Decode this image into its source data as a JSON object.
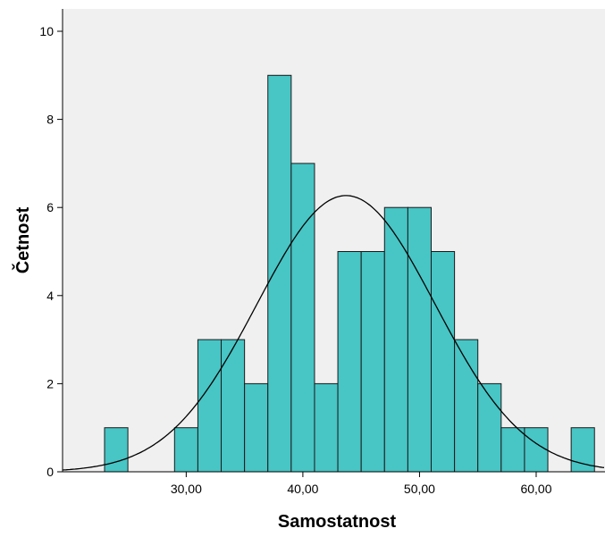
{
  "chart_data": {
    "type": "bar",
    "subtype": "histogram",
    "xlabel": "Samostatnost",
    "ylabel": "Četnost",
    "xlim": [
      20.0,
      66.0
    ],
    "ylim": [
      0,
      10.4
    ],
    "bin_width": 2,
    "x_ticks": [
      30,
      40,
      50,
      60
    ],
    "x_tick_labels": [
      "30,00",
      "40,00",
      "50,00",
      "60,00"
    ],
    "y_ticks": [
      0,
      2,
      4,
      6,
      8,
      10
    ],
    "y_tick_labels": [
      "0",
      "2",
      "4",
      "6",
      "8",
      "10"
    ],
    "bins": [
      {
        "start": 23,
        "end": 25,
        "count": 1
      },
      {
        "start": 25,
        "end": 27,
        "count": 0
      },
      {
        "start": 27,
        "end": 29,
        "count": 0
      },
      {
        "start": 29,
        "end": 31,
        "count": 1
      },
      {
        "start": 31,
        "end": 33,
        "count": 3
      },
      {
        "start": 33,
        "end": 35,
        "count": 3
      },
      {
        "start": 35,
        "end": 37,
        "count": 2
      },
      {
        "start": 37,
        "end": 39,
        "count": 9
      },
      {
        "start": 39,
        "end": 41,
        "count": 7
      },
      {
        "start": 41,
        "end": 43,
        "count": 2
      },
      {
        "start": 43,
        "end": 45,
        "count": 5
      },
      {
        "start": 45,
        "end": 47,
        "count": 5
      },
      {
        "start": 47,
        "end": 49,
        "count": 6
      },
      {
        "start": 49,
        "end": 51,
        "count": 6
      },
      {
        "start": 51,
        "end": 53,
        "count": 5
      },
      {
        "start": 53,
        "end": 55,
        "count": 3
      },
      {
        "start": 55,
        "end": 57,
        "count": 2
      },
      {
        "start": 57,
        "end": 59,
        "count": 1
      },
      {
        "start": 59,
        "end": 61,
        "count": 1
      },
      {
        "start": 61,
        "end": 63,
        "count": 0
      },
      {
        "start": 63,
        "end": 65,
        "count": 1
      }
    ],
    "normal_curve": {
      "mean": 43.7,
      "sd": 7.64,
      "peak": 6.27
    },
    "grid": false,
    "colors": {
      "bar_fill": "#48C5C5",
      "bar_stroke": "#1a1a1a",
      "plot_background": "#F0F0F0",
      "curve": "#000000"
    }
  }
}
